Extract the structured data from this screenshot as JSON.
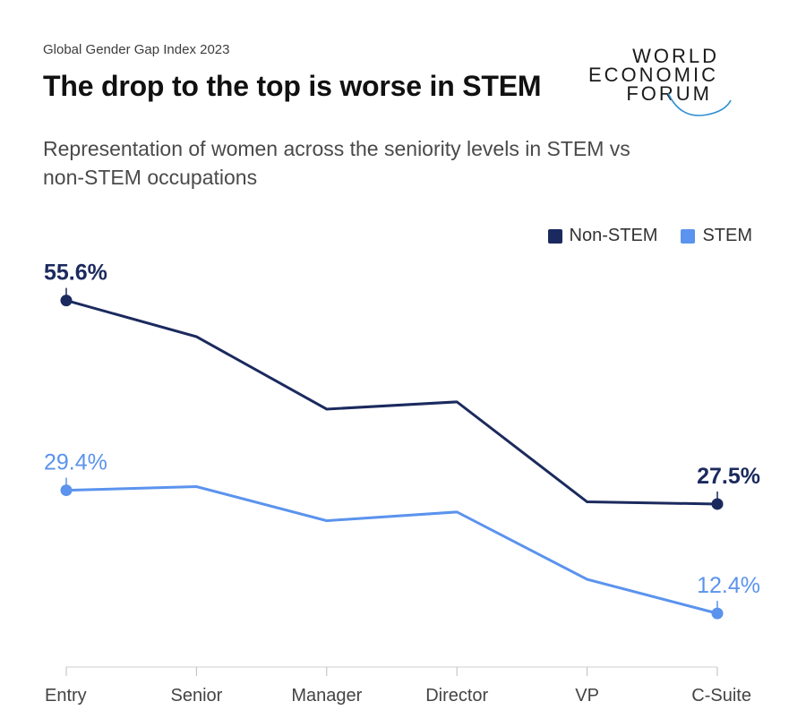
{
  "header": {
    "source": "Global Gender Gap Index 2023",
    "title": "The drop to the top is worse in STEM",
    "subtitle": "Representation of women across the seniority levels in STEM vs non-STEM occupations"
  },
  "logo": {
    "line1": "WORLD",
    "line2": "ECONOMIC",
    "line3": "FORUM"
  },
  "colors": {
    "non_stem": "#1b2a5e",
    "stem": "#5b93ee"
  },
  "chart_data": {
    "type": "line",
    "title": "The drop to the top is worse in STEM",
    "xlabel": "",
    "ylabel": "",
    "categories": [
      "Entry",
      "Senior",
      "Manager",
      "Director",
      "VP",
      "C-Suite"
    ],
    "ylim": [
      5,
      60
    ],
    "grid": false,
    "legend_position": "top-right",
    "series": [
      {
        "name": "Non-STEM",
        "values": [
          55.6,
          50.6,
          40.6,
          41.6,
          27.8,
          27.5
        ],
        "labels": [
          {
            "index": 0,
            "text": "55.6%"
          },
          {
            "index": 5,
            "text": "27.5%"
          }
        ]
      },
      {
        "name": "STEM",
        "values": [
          29.4,
          29.9,
          25.2,
          26.4,
          17.1,
          12.4
        ],
        "labels": [
          {
            "index": 0,
            "text": "29.4%"
          },
          {
            "index": 5,
            "text": "12.4%"
          }
        ]
      }
    ]
  }
}
